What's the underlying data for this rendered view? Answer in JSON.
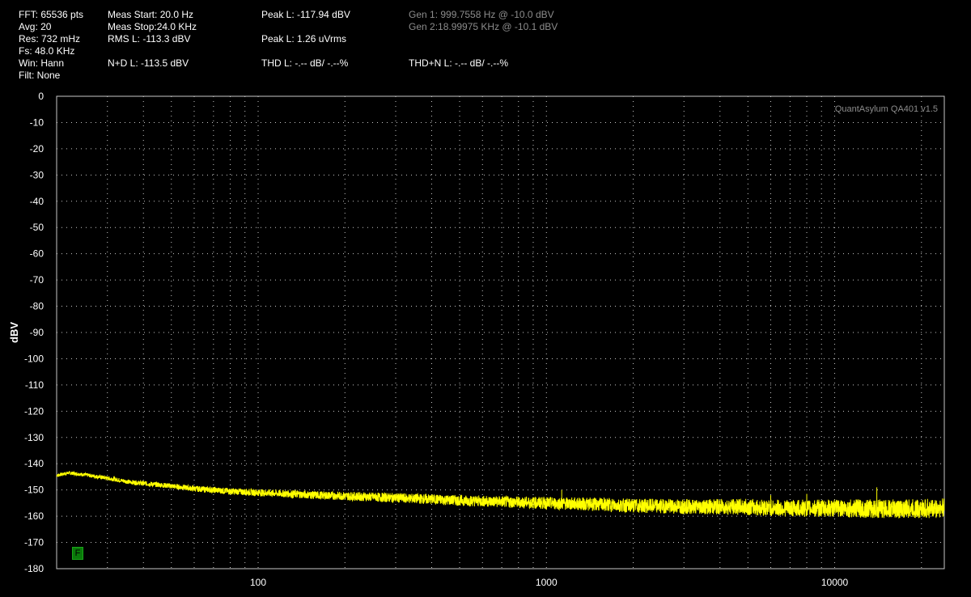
{
  "readouts": {
    "fft": "FFT: 65536 pts",
    "avg": "Avg: 20",
    "res": "Res: 732 mHz",
    "fs": "Fs: 48.0 KHz",
    "win": "Win: Hann",
    "filt": "Filt: None",
    "meas_start": "Meas Start: 20.0 Hz",
    "meas_stop": "Meas Stop:24.0 KHz",
    "rms": "RMS L: -113.3 dBV",
    "nd": "N+D L: -113.5 dBV",
    "peak_dbv": "Peak L: -117.94 dBV",
    "peak_uv": "Peak L: 1.26 uVrms",
    "thd": "THD L: -.-- dB/ -.--%",
    "gen1": "Gen 1: 999.7558 Hz @ -10.0  dBV",
    "gen2": "Gen 2:18.99975 KHz @ -10.1  dBV",
    "thdn": "THD+N L: -.-- dB/ -.--%"
  },
  "watermark": "QuantAsylum QA401 v1.5",
  "badge": "F",
  "colors": {
    "background": "#000000",
    "trace": "#ffff00",
    "grid": "#c8c8c8",
    "text": "#ffffff",
    "dim_text": "#8c8c8c",
    "badge": "#0a7a0a"
  },
  "chart_data": {
    "type": "line",
    "xscale": "log",
    "xlim": [
      20,
      24000
    ],
    "ylim": [
      -180,
      0
    ],
    "ylabel": "dBV",
    "xlabel": "",
    "grid": true,
    "x_ticks": [
      100,
      1000,
      10000
    ],
    "x_tick_labels": [
      "100",
      "1000",
      "10000"
    ],
    "y_ticks": [
      0,
      -10,
      -20,
      -30,
      -40,
      -50,
      -60,
      -70,
      -80,
      -90,
      -100,
      -110,
      -120,
      -130,
      -140,
      -150,
      -160,
      -170,
      -180
    ],
    "y_tick_labels": [
      "0",
      "-10",
      "-20",
      "-30",
      "-40",
      "-50",
      "-60",
      "-70",
      "-80",
      "-90",
      "-100",
      "-110",
      "-120",
      "-130",
      "-140",
      "-150",
      "-160",
      "-170",
      "-180"
    ],
    "series": [
      {
        "color": "#ffff00",
        "x": [
          20,
          22,
          25,
          28,
          32,
          36,
          40,
          45,
          50,
          60,
          70,
          80,
          100,
          130,
          160,
          200,
          300,
          500,
          700,
          1000,
          1500,
          2000,
          3000,
          5000,
          7000,
          10000,
          15000,
          20000,
          24000
        ],
        "y": [
          -144.5,
          -143.5,
          -144.2,
          -145,
          -146,
          -147,
          -147.5,
          -148,
          -148.5,
          -149.5,
          -150,
          -150.5,
          -151,
          -151.5,
          -152,
          -152.3,
          -153,
          -154,
          -154.5,
          -155,
          -155.5,
          -156,
          -156.3,
          -156.5,
          -157,
          -157,
          -157.2,
          -157.2,
          -157
        ]
      }
    ],
    "spurs": [
      {
        "x": 1130,
        "y": -150
      },
      {
        "x": 3000,
        "y": -154
      },
      {
        "x": 6000,
        "y": -152
      },
      {
        "x": 8000,
        "y": -151.5
      },
      {
        "x": 14000,
        "y": -149
      }
    ]
  }
}
